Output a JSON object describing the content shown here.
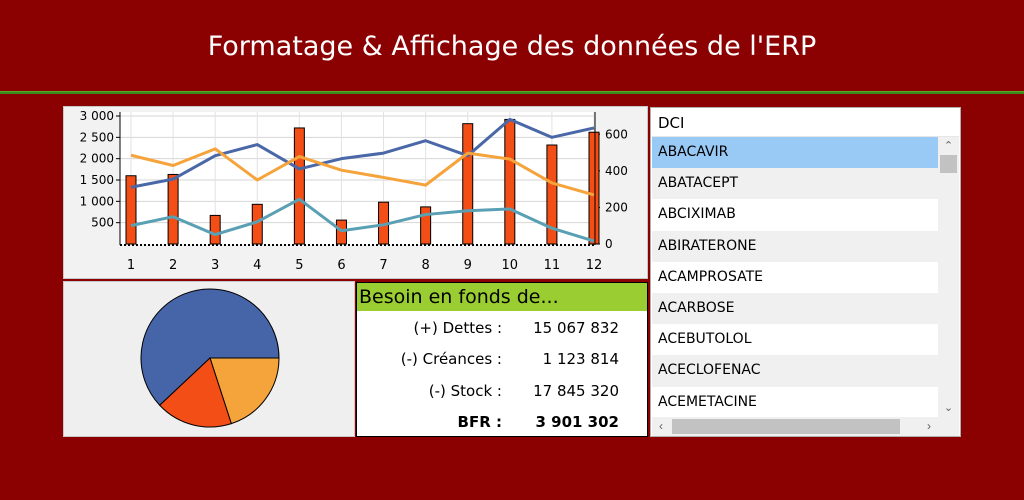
{
  "header": {
    "title": "Formatage & Affichage des données de l'ERP"
  },
  "chart_data": [
    {
      "type": "bar",
      "categories": [
        "1",
        "2",
        "3",
        "4",
        "5",
        "6",
        "7",
        "8",
        "9",
        "10",
        "11",
        "12"
      ],
      "series": [
        {
          "values": [
            1600,
            1630,
            670,
            930,
            2720,
            560,
            980,
            870,
            2820,
            2920,
            2320,
            2620
          ],
          "axis": "left"
        },
        {
          "values": [
            1330,
            1520,
            2070,
            2330,
            1760,
            2000,
            2130,
            2420,
            2070,
            2920,
            2500,
            2720
          ],
          "axis": "left"
        },
        {
          "values": [
            2080,
            1840,
            2230,
            1500,
            2050,
            1730,
            1560,
            1380,
            2130,
            1990,
            1430,
            1150
          ],
          "axis": "left"
        },
        {
          "values": [
            430,
            640,
            220,
            520,
            1050,
            310,
            450,
            690,
            780,
            820,
            370,
            70
          ],
          "axis": "left"
        }
      ],
      "colors": [
        "#f24e15",
        "#4a67a8",
        "#f5a33b",
        "#5aa0b4"
      ],
      "ylim": [
        0,
        3000
      ],
      "y_ticks": [
        "3 000",
        "2 500",
        "2 000",
        "1 500",
        "1 000",
        "500"
      ],
      "y2lim": [
        0,
        700
      ],
      "y2_ticks": [
        "600",
        "400",
        "200",
        "0"
      ],
      "grid": true
    },
    {
      "type": "pie",
      "values": [
        62,
        20,
        18
      ],
      "colors": [
        "#4664a8",
        "#f5a33b",
        "#f24e15"
      ]
    }
  ],
  "bfr": {
    "title": "Besoin en fonds de...",
    "rows": [
      {
        "label": "(+) Dettes :",
        "value": "15 067 832"
      },
      {
        "label": "(-) Créances :",
        "value": "1 123 814"
      },
      {
        "label": "(-) Stock :",
        "value": "17 845 320"
      }
    ],
    "total": {
      "label": "BFR :",
      "value": "3 901 302"
    }
  },
  "list": {
    "header": "DCI",
    "items": [
      "ABACAVIR",
      "ABATACEPT",
      "ABCIXIMAB",
      "ABIRATERONE",
      "ACAMPROSATE",
      "ACARBOSE",
      "ACEBUTOLOL",
      "ACECLOFENAC",
      "ACEMETACINE"
    ],
    "selected_index": 0
  },
  "icons": {
    "scroll_up": "chevron-up-icon",
    "scroll_down": "chevron-down-icon",
    "scroll_left": "chevron-left-icon",
    "scroll_right": "chevron-right-icon"
  }
}
